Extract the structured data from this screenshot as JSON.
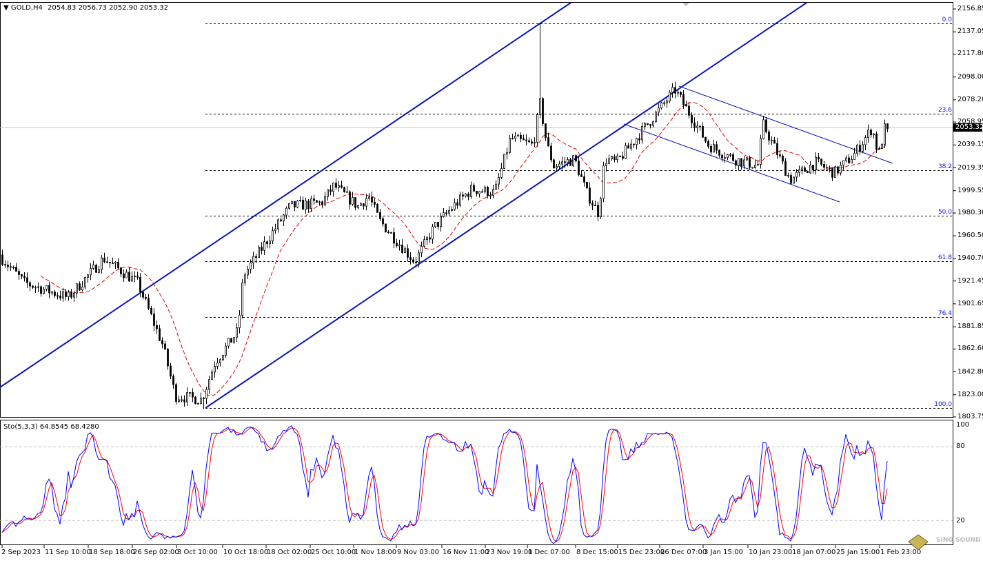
{
  "header": {
    "symbol": "GOLD,H4",
    "ohlc": "2054.83 2056.73 2052.90 2053.32"
  },
  "indicator": {
    "label": "Sto(5,3,3) 64.8545 68.4280",
    "levels": [
      "100",
      "80",
      "20"
    ]
  },
  "price_axis": [
    "2156.85",
    "2137.05",
    "2117.80",
    "2098.00",
    "2078.20",
    "2058.95",
    "2039.15",
    "2019.35",
    "1999.55",
    "1980.30",
    "1960.50",
    "1940.70",
    "1921.45",
    "1901.65",
    "1881.85",
    "1862.60",
    "1842.80",
    "1823.00",
    "1803.75"
  ],
  "bid_price": "2053.32",
  "time_axis": [
    "2 Sep 2023",
    "11 Sep 10:00",
    "18 Sep 18:00",
    "26 Sep 02:00",
    "3 Oct 10:00",
    "10 Oct 18:00",
    "18 Oct 02:00",
    "25 Oct 10:00",
    "1 Nov 18:00",
    "9 Nov 03:00",
    "16 Nov 11:00",
    "23 Nov 19:00",
    "1 Dec 07:00",
    "8 Dec 15:00",
    "15 Dec 23:00",
    "26 Dec 07:00",
    "3 Jan 15:00",
    "10 Jan 23:00",
    "18 Jan 07:00",
    "25 Jan 15:00",
    "1 Feb 23:00"
  ],
  "fibonacci": [
    {
      "level": "0.0",
      "price": 2144.6
    },
    {
      "level": "23.6",
      "price": 2066.0
    },
    {
      "level": "38.2",
      "price": 2017.4
    },
    {
      "level": "50.0",
      "price": 1978.1
    },
    {
      "level": "61.8",
      "price": 1938.7
    },
    {
      "level": "76.4",
      "price": 1890.1
    },
    {
      "level": "100.0",
      "price": 1811.5
    }
  ],
  "watermark": "SINO SOUND",
  "colors": {
    "candles": "#000000",
    "trendlines": "#0a14b4",
    "fib": "#1010e0",
    "ma": "#e00000",
    "stoch_main": "#0000ff",
    "stoch_signal": "#ff0000"
  },
  "chart_data": {
    "type": "candlestick",
    "symbol": "GOLD",
    "timeframe": "H4",
    "ylim": [
      1803.75,
      2156.85
    ],
    "last": {
      "open": 2054.83,
      "high": 2056.73,
      "low": 2052.9,
      "close": 2053.32
    },
    "price_path": [
      [
        "2023-09-01",
        1944
      ],
      [
        "2023-09-07",
        1920
      ],
      [
        "2023-09-15",
        1907
      ],
      [
        "2023-09-21",
        1941
      ],
      [
        "2023-09-27",
        1920
      ],
      [
        "2023-10-01",
        1866
      ],
      [
        "2023-10-03",
        1822
      ],
      [
        "2023-10-07",
        1819
      ],
      [
        "2023-10-09",
        1851
      ],
      [
        "2023-10-13",
        1878
      ],
      [
        "2023-10-14",
        1926
      ],
      [
        "2023-10-19",
        1962
      ],
      [
        "2023-10-22",
        1986
      ],
      [
        "2023-10-27",
        1989
      ],
      [
        "2023-10-29",
        2004
      ],
      [
        "2023-11-02",
        1986
      ],
      [
        "2023-11-04",
        1995
      ],
      [
        "2023-11-06",
        1974
      ],
      [
        "2023-11-12",
        1938
      ],
      [
        "2023-11-15",
        1968
      ],
      [
        "2023-11-18",
        1986
      ],
      [
        "2023-11-21",
        2001
      ],
      [
        "2023-11-25",
        1998
      ],
      [
        "2023-11-28",
        2045
      ],
      [
        "2023-12-02",
        2039
      ],
      [
        "2023-12-03",
        2075
      ],
      [
        "2023-12-04",
        2039
      ],
      [
        "2023-12-05",
        2021
      ],
      [
        "2023-12-08",
        2027
      ],
      [
        "2023-12-10",
        1998
      ],
      [
        "2023-12-12",
        1980
      ],
      [
        "2023-12-13",
        2027
      ],
      [
        "2023-12-15",
        2024
      ],
      [
        "2023-12-26",
        2069
      ],
      [
        "2023-12-29",
        2087
      ],
      [
        "2024-01-04",
        2039
      ],
      [
        "2024-01-08",
        2027
      ],
      [
        "2024-01-12",
        2021
      ],
      [
        "2024-01-13",
        2057
      ],
      [
        "2024-01-18",
        2009
      ],
      [
        "2024-01-22",
        2024
      ],
      [
        "2024-01-25",
        2015
      ],
      [
        "2024-01-28",
        2030
      ],
      [
        "2024-01-31",
        2054
      ],
      [
        "2024-02-01",
        2030
      ],
      [
        "2024-02-02",
        2053.32
      ]
    ],
    "period_high": 2144.6,
    "period_low": 1810.5,
    "indicators": {
      "ma": "red dashed moving average",
      "stochastic": {
        "k": 5,
        "d": 3,
        "slowing": 3,
        "main": 64.8545,
        "signal": 68.428,
        "levels": [
          20,
          80
        ]
      }
    }
  }
}
